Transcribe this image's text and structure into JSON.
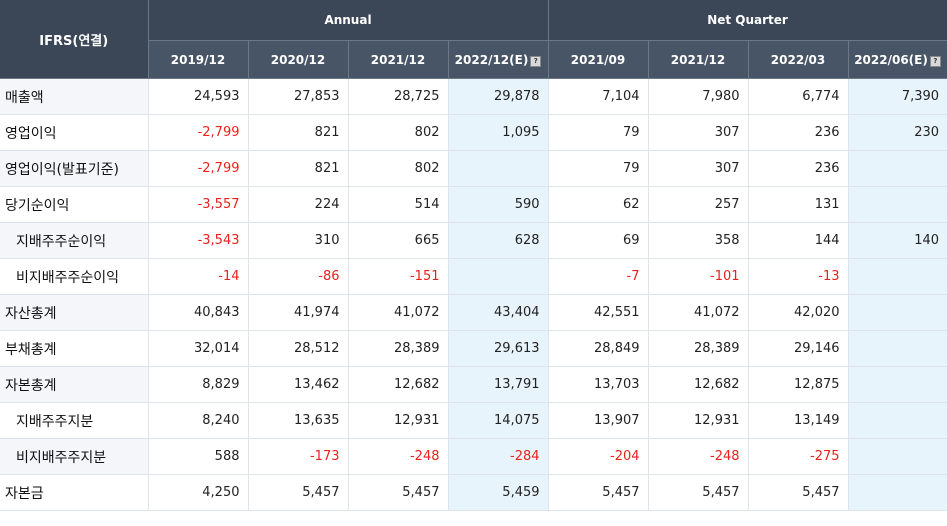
{
  "header": {
    "corner_label": "IFRS(연결)",
    "group_annual": "Annual",
    "group_quarter": "Net Quarter",
    "estimate_icon": "info-icon",
    "periods": [
      {
        "label": "2019/12",
        "estimate": false
      },
      {
        "label": "2020/12",
        "estimate": false
      },
      {
        "label": "2021/12",
        "estimate": false
      },
      {
        "label": "2022/12(E)",
        "estimate": true
      },
      {
        "label": "2021/09",
        "estimate": false
      },
      {
        "label": "2021/12",
        "estimate": false
      },
      {
        "label": "2022/03",
        "estimate": false
      },
      {
        "label": "2022/06(E)",
        "estimate": true
      }
    ]
  },
  "colors": {
    "negative": "#e8211f",
    "estimate_bg": "#e8f4fb",
    "header_bg": "#3e4a59"
  },
  "rows": [
    {
      "label": "매출액",
      "sub": false,
      "values": [
        "24,593",
        "27,853",
        "28,725",
        "29,878",
        "7,104",
        "7,980",
        "6,774",
        "7,390"
      ]
    },
    {
      "label": "영업이익",
      "sub": false,
      "values": [
        "-2,799",
        "821",
        "802",
        "1,095",
        "79",
        "307",
        "236",
        "230"
      ]
    },
    {
      "label": "영업이익(발표기준)",
      "sub": false,
      "values": [
        "-2,799",
        "821",
        "802",
        "",
        "79",
        "307",
        "236",
        ""
      ]
    },
    {
      "label": "당기순이익",
      "sub": false,
      "values": [
        "-3,557",
        "224",
        "514",
        "590",
        "62",
        "257",
        "131",
        ""
      ]
    },
    {
      "label": "지배주주순이익",
      "sub": true,
      "values": [
        "-3,543",
        "310",
        "665",
        "628",
        "69",
        "358",
        "144",
        "140"
      ]
    },
    {
      "label": "비지배주주순이익",
      "sub": true,
      "values": [
        "-14",
        "-86",
        "-151",
        "",
        "-7",
        "-101",
        "-13",
        ""
      ]
    },
    {
      "label": "자산총계",
      "sub": false,
      "values": [
        "40,843",
        "41,974",
        "41,072",
        "43,404",
        "42,551",
        "41,072",
        "42,020",
        ""
      ]
    },
    {
      "label": "부채총계",
      "sub": false,
      "values": [
        "32,014",
        "28,512",
        "28,389",
        "29,613",
        "28,849",
        "28,389",
        "29,146",
        ""
      ]
    },
    {
      "label": "자본총계",
      "sub": false,
      "values": [
        "8,829",
        "13,462",
        "12,682",
        "13,791",
        "13,703",
        "12,682",
        "12,875",
        ""
      ]
    },
    {
      "label": "지배주주지분",
      "sub": true,
      "values": [
        "8,240",
        "13,635",
        "12,931",
        "14,075",
        "13,907",
        "12,931",
        "13,149",
        ""
      ]
    },
    {
      "label": "비지배주주지분",
      "sub": true,
      "values": [
        "588",
        "-173",
        "-248",
        "-284",
        "-204",
        "-248",
        "-275",
        ""
      ]
    },
    {
      "label": "자본금",
      "sub": false,
      "values": [
        "4,250",
        "5,457",
        "5,457",
        "5,459",
        "5,457",
        "5,457",
        "5,457",
        ""
      ]
    }
  ]
}
